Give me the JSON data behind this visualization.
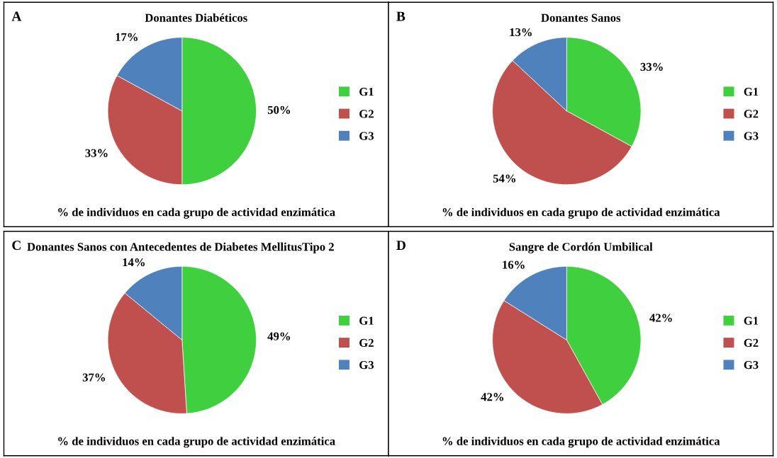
{
  "chart_data": [
    {
      "type": "pie",
      "title": "Donantes Diabéticos",
      "annotations": [
        "A"
      ],
      "xlabel": "% de individuos en cada grupo de actividad enzimática",
      "categories": [
        "G1",
        "G2",
        "G3"
      ],
      "values": [
        50,
        33,
        17
      ],
      "value_labels": [
        "50%",
        "33%",
        "17%"
      ],
      "colors": [
        "#3fcf3f",
        "#c0504d",
        "#4f81bd"
      ],
      "legend": "right"
    },
    {
      "type": "pie",
      "title": "Donantes Sanos",
      "annotations": [
        "B"
      ],
      "xlabel": "% de individuos en cada grupo de actividad enzimática",
      "categories": [
        "G1",
        "G2",
        "G3"
      ],
      "values": [
        33,
        54,
        13
      ],
      "value_labels": [
        "33%",
        "54%",
        "13%"
      ],
      "colors": [
        "#3fcf3f",
        "#c0504d",
        "#4f81bd"
      ],
      "legend": "right"
    },
    {
      "type": "pie",
      "title": "Donantes Sanos con Antecedentes de Diabetes MellitusTipo 2",
      "annotations": [
        "C"
      ],
      "xlabel": "% de individuos en cada grupo de actividad enzimática",
      "categories": [
        "G1",
        "G2",
        "G3"
      ],
      "values": [
        49,
        37,
        14
      ],
      "value_labels": [
        "49%",
        "37%",
        "14%"
      ],
      "colors": [
        "#3fcf3f",
        "#c0504d",
        "#4f81bd"
      ],
      "legend": "right"
    },
    {
      "type": "pie",
      "title": "Sangre de Cordón Umbilical",
      "annotations": [
        "D"
      ],
      "xlabel": "% de individuos en cada grupo de actividad enzimática",
      "categories": [
        "G1",
        "G2",
        "G3"
      ],
      "values": [
        42,
        42,
        16
      ],
      "value_labels": [
        "42%",
        "42%",
        "16%"
      ],
      "colors": [
        "#3fcf3f",
        "#c0504d",
        "#4f81bd"
      ],
      "legend": "right"
    }
  ]
}
